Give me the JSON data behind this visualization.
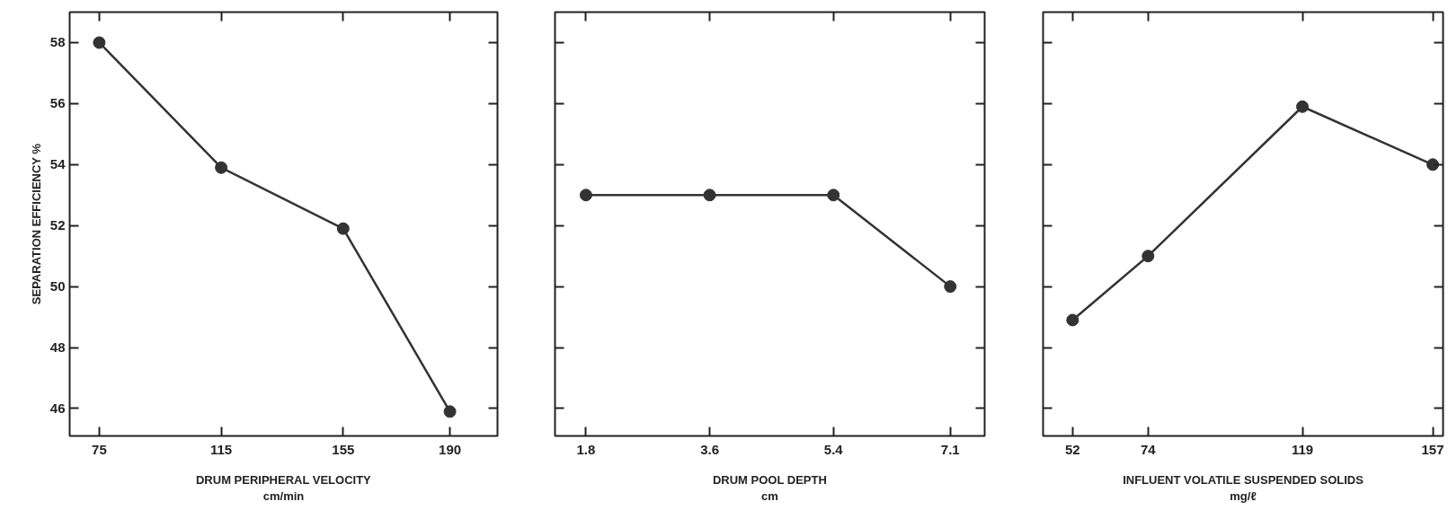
{
  "chart_data": [
    {
      "type": "line",
      "x": [
        75,
        115,
        155,
        190
      ],
      "values": [
        58,
        53.9,
        51.9,
        45.9
      ],
      "color": "#333333",
      "marker": "circle",
      "xlim": [
        65.3,
        205.6
      ],
      "xticks": [
        75,
        115,
        155,
        190
      ],
      "ylim": [
        45.1,
        59
      ],
      "yticks": [
        46,
        48,
        50,
        52,
        54,
        56,
        58
      ],
      "xlabel": "DRUM PERIPHERAL VELOCITY\ncm/min",
      "ylabel": "SEPARATION EFFICIENCY %"
    },
    {
      "type": "line",
      "x": [
        1.8,
        3.6,
        5.4,
        7.1
      ],
      "values": [
        53,
        53,
        53,
        50
      ],
      "color": "#333333",
      "marker": "circle",
      "xlim": [
        1.35,
        7.6
      ],
      "xticks": [
        1.8,
        3.6,
        5.4,
        7.1
      ],
      "ylim": [
        45.1,
        59
      ],
      "yticks": [
        46,
        48,
        50,
        52,
        54,
        56,
        58
      ],
      "xlabel": "DRUM POOL DEPTH\ncm",
      "tick_labels": "x"
    },
    {
      "type": "line",
      "x": [
        52,
        74,
        119,
        157
      ],
      "values": [
        48.9,
        51,
        55.9,
        54
      ],
      "color": "#333333",
      "marker": "circle",
      "xlim": [
        43.4,
        160
      ],
      "xticks": [
        52,
        74,
        119,
        157
      ],
      "ylim": [
        45.1,
        59
      ],
      "yticks": [
        46,
        48,
        50,
        52,
        54,
        56,
        58
      ],
      "xlabel": "INFLUENT VOLATILE SUSPENDED SOLIDS\nmg/ℓ",
      "tick_labels": "x"
    }
  ]
}
